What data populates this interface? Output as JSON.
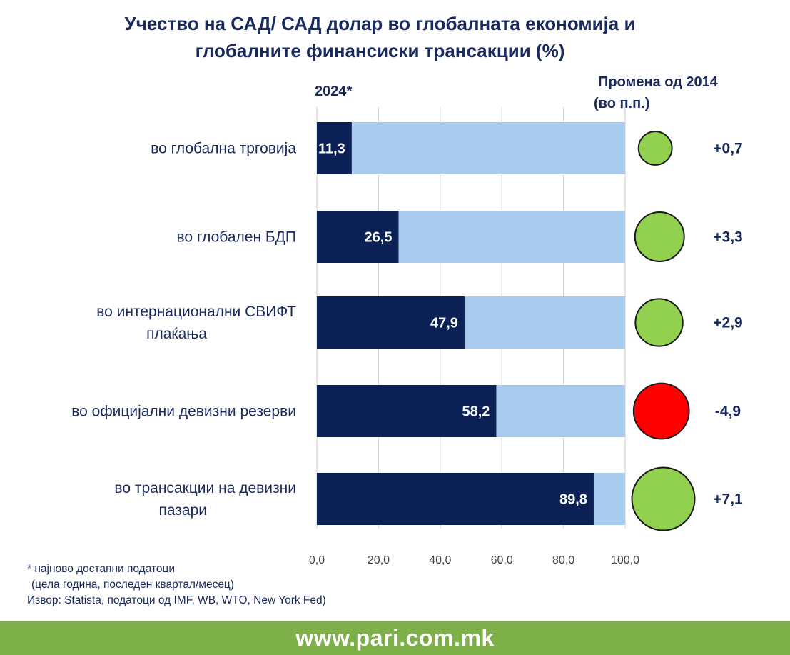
{
  "chart_data": {
    "type": "bar",
    "orientation": "horizontal",
    "stacked_to_total": true,
    "title": [
      "Учество на САД/ САД долар во глобалната економија и",
      "глобалните финансиски трансакции (%)"
    ],
    "year_label": "2024*",
    "change_header": [
      "Промена од  2014",
      "(во п.п.)"
    ],
    "categories": [
      [
        "во глобална трговија"
      ],
      [
        "во глобален БДП"
      ],
      [
        "во интернационални СВИФТ",
        "плаќања"
      ],
      [
        "во официјални девизни резерви"
      ],
      [
        "во трансакции на девизни",
        "пазари"
      ]
    ],
    "values": [
      11.3,
      26.5,
      47.9,
      58.2,
      89.8
    ],
    "value_labels": [
      "11,3",
      "26,5",
      "47,9",
      "58,2",
      "89,8"
    ],
    "total": 100,
    "changes": [
      0.7,
      3.3,
      2.9,
      -4.9,
      7.1
    ],
    "change_labels": [
      "+0,7",
      "+3,3",
      "+2,9",
      "-4,9",
      "+7,1"
    ],
    "xlim": [
      0,
      100
    ],
    "xticks": [
      0,
      20,
      40,
      60,
      80,
      100
    ],
    "xtick_labels": [
      "0,0",
      "20,0",
      "40,0",
      "60,0",
      "80,0",
      "100,0"
    ],
    "grid": true,
    "colors": {
      "share": "#0b2155",
      "remainder": "#a9cbed",
      "positive_change": "#92d050",
      "negative_change": "#ff0000",
      "bubble_outline": "#1a1a1a",
      "text": "#1a2a5e",
      "grid": "#d9d9d9"
    }
  },
  "footnotes": [
    "* најново достапни податоци",
    " (цела година, последен квартал/месец)",
    "Извор: Statista, податоци од IMF, WB, WTO, New York Fed)"
  ],
  "footer": {
    "url": "www.pari.com.mk",
    "background": "#7eb04a"
  }
}
